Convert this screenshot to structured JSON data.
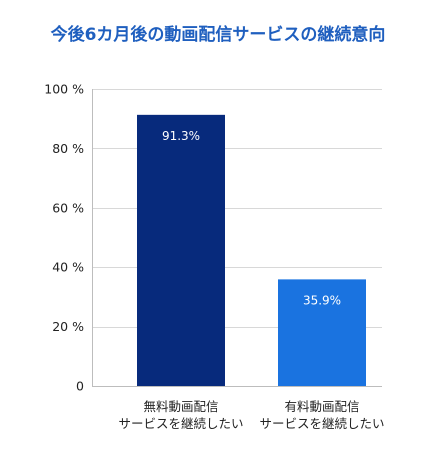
{
  "chart_data": {
    "type": "bar",
    "title": "今後6カ月後の動画配信サービスの継続意向",
    "categories": [
      [
        "無料動画配信",
        "サービスを継続したい"
      ],
      [
        "有料動画配信",
        "サービスを継続したい"
      ]
    ],
    "values": [
      91.3,
      35.9
    ],
    "value_labels": [
      "91.3%",
      "35.9%"
    ],
    "bar_colors": [
      "#072a7c",
      "#1a73e0"
    ],
    "ylim": [
      0,
      100
    ],
    "yticks": [
      0,
      20,
      40,
      60,
      80,
      100
    ],
    "ytick_labels": [
      "0",
      "20 %",
      "40 %",
      "60 %",
      "80 %",
      "100 %"
    ],
    "grid": true,
    "title_color": "#1f5fbf"
  }
}
